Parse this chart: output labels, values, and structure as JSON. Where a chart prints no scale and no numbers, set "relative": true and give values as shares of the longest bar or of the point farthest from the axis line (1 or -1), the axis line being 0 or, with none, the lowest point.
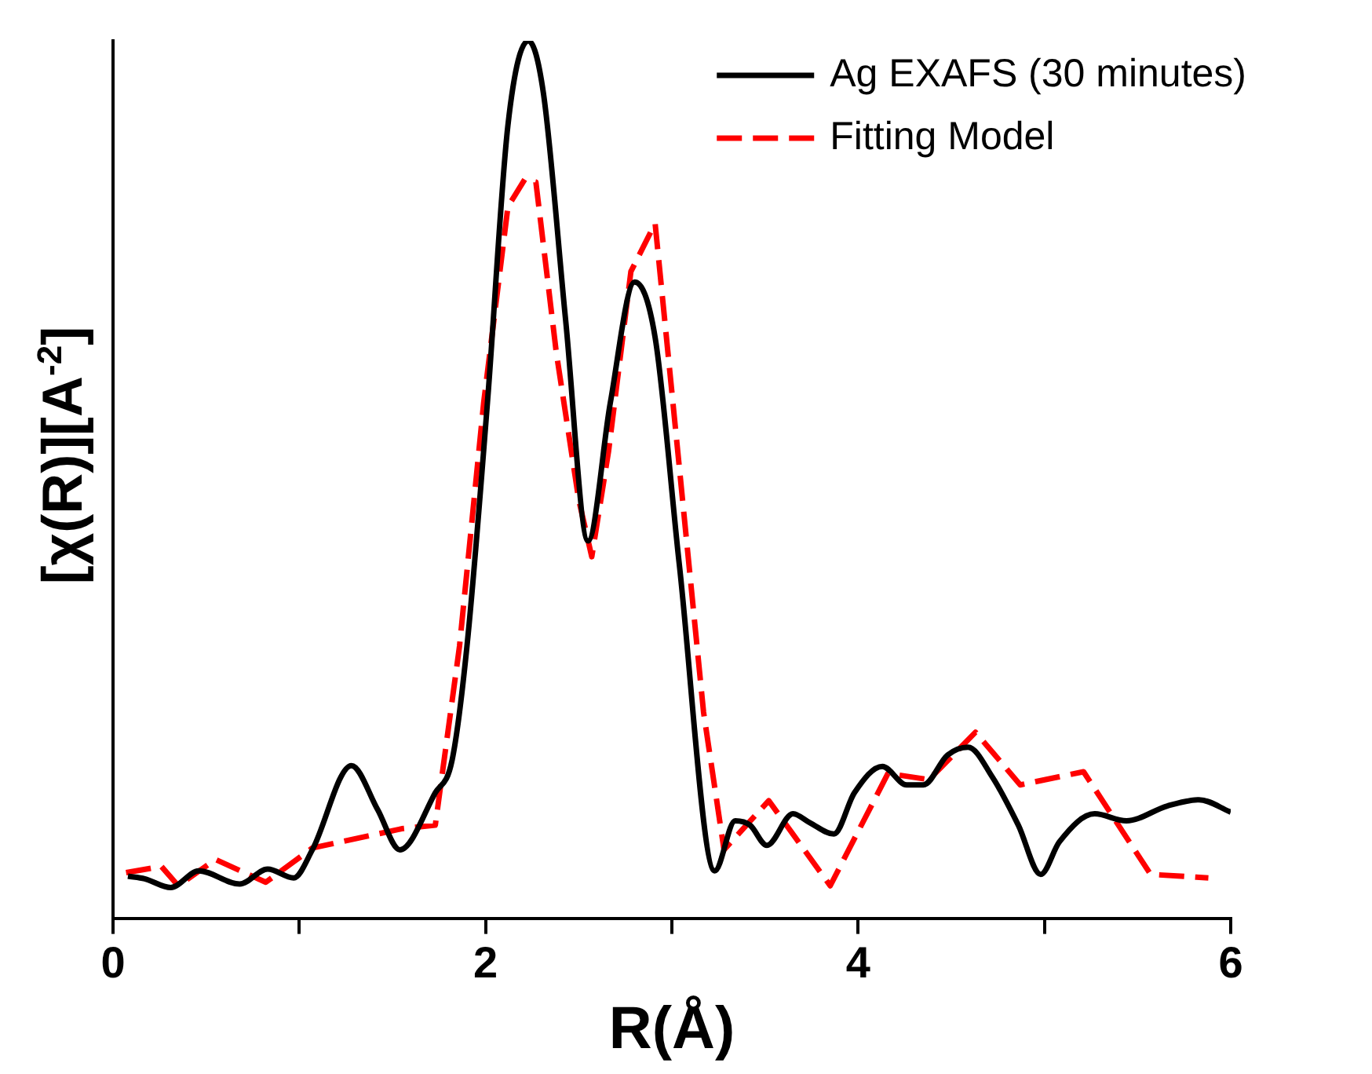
{
  "chart_data": {
    "type": "line",
    "relative": true,
    "xlabel": "R(Å)",
    "ylabel": "[χ(R)][A$^{-2}$]",
    "xlim": [
      0,
      6
    ],
    "xticks": [
      0,
      {
        "value": 1,
        "label": null
      },
      2,
      {
        "value": 3,
        "label": null
      },
      4,
      {
        "value": 5,
        "label": null
      },
      6
    ],
    "legend": "top right",
    "grid": false,
    "marker": "none",
    "series": [
      {
        "name": "Ag EXAFS (30 minutes)",
        "color": "#000000",
        "line_style": "solid",
        "x": [
          0.08,
          0.17,
          0.31,
          0.46,
          0.68,
          0.83,
          0.97,
          1.07,
          1.28,
          1.42,
          1.54,
          1.73,
          1.82,
          1.9,
          2.01,
          2.12,
          2.23,
          2.31,
          2.43,
          2.55,
          2.67,
          2.8,
          2.91,
          3.04,
          3.23,
          3.34,
          3.42,
          3.51,
          3.65,
          3.74,
          3.87,
          3.98,
          4.13,
          4.26,
          4.35,
          4.48,
          4.59,
          4.72,
          4.86,
          4.98,
          5.08,
          5.27,
          5.44,
          5.66,
          5.83,
          6.0
        ],
        "values": [
          0.048,
          0.045,
          0.035,
          0.054,
          0.039,
          0.056,
          0.046,
          0.078,
          0.174,
          0.124,
          0.078,
          0.143,
          0.18,
          0.31,
          0.588,
          0.904,
          1,
          0.941,
          0.681,
          0.43,
          0.588,
          0.725,
          0.662,
          0.403,
          0.054,
          0.111,
          0.106,
          0.083,
          0.119,
          0.109,
          0.096,
          0.143,
          0.173,
          0.152,
          0.152,
          0.186,
          0.195,
          0.161,
          0.106,
          0.05,
          0.087,
          0.119,
          0.111,
          0.128,
          0.135,
          0.121
        ]
      },
      {
        "name": "Fitting Model",
        "color": "#ff0000",
        "line_style": "dashed",
        "x": [
          0.07,
          0.26,
          0.35,
          0.55,
          0.82,
          1.07,
          1.55,
          1.73,
          1.86,
          1.99,
          2.12,
          2.21,
          2.27,
          2.38,
          2.5,
          2.57,
          2.66,
          2.78,
          2.91,
          3.04,
          3.17,
          3.28,
          3.52,
          3.85,
          4.16,
          4.38,
          4.63,
          4.87,
          5.21,
          5.57,
          5.88
        ],
        "values": [
          0.052,
          0.059,
          0.037,
          0.067,
          0.041,
          0.08,
          0.102,
          0.106,
          0.31,
          0.588,
          0.811,
          0.842,
          0.839,
          0.644,
          0.477,
          0.412,
          0.532,
          0.737,
          0.792,
          0.514,
          0.235,
          0.078,
          0.134,
          0.037,
          0.165,
          0.158,
          0.212,
          0.152,
          0.167,
          0.05,
          0.046
        ]
      }
    ]
  }
}
